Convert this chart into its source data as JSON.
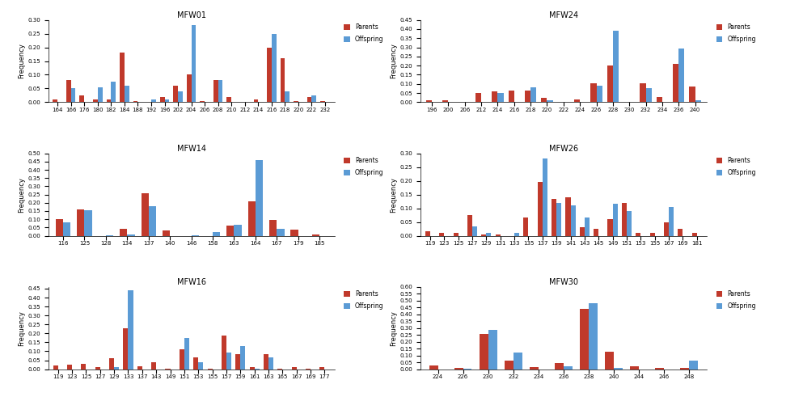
{
  "charts": [
    {
      "title": "MFW01",
      "categories": [
        164,
        166,
        176,
        180,
        182,
        184,
        188,
        192,
        196,
        202,
        204,
        206,
        208,
        210,
        212,
        214,
        216,
        218,
        220,
        222,
        232
      ],
      "parents": [
        0.01,
        0.08,
        0.025,
        0.01,
        0.01,
        0.18,
        0.005,
        0.0,
        0.02,
        0.06,
        0.1,
        0.005,
        0.08,
        0.02,
        0.0,
        0.01,
        0.2,
        0.16,
        0.005,
        0.02,
        0.005
      ],
      "offspring": [
        0.0,
        0.05,
        0.0,
        0.055,
        0.075,
        0.06,
        0.0,
        0.01,
        0.01,
        0.04,
        0.28,
        0.0,
        0.08,
        0.0,
        0.0,
        0.0,
        0.25,
        0.04,
        0.0,
        0.025,
        0.0
      ],
      "ylim": [
        0,
        0.3
      ]
    },
    {
      "title": "MFW24",
      "categories": [
        196,
        200,
        206,
        212,
        214,
        216,
        218,
        220,
        222,
        224,
        226,
        228,
        230,
        232,
        234,
        236,
        240
      ],
      "parents": [
        0.01,
        0.01,
        0.0,
        0.05,
        0.06,
        0.065,
        0.065,
        0.025,
        0.0,
        0.015,
        0.105,
        0.2,
        0.0,
        0.105,
        0.03,
        0.21,
        0.085
      ],
      "offspring": [
        0.0,
        0.0,
        0.0,
        0.0,
        0.05,
        0.0,
        0.08,
        0.01,
        0.0,
        0.0,
        0.09,
        0.39,
        0.0,
        0.075,
        0.0,
        0.295,
        0.01
      ],
      "ylim": [
        0,
        0.45
      ]
    },
    {
      "title": "MFW14",
      "categories": [
        116,
        125,
        128,
        134,
        137,
        140,
        146,
        158,
        163,
        164,
        167,
        179,
        185
      ],
      "parents": [
        0.1,
        0.16,
        0.0,
        0.04,
        0.26,
        0.03,
        0.0,
        0.0,
        0.06,
        0.21,
        0.095,
        0.035,
        0.01
      ],
      "offspring": [
        0.08,
        0.155,
        0.005,
        0.01,
        0.18,
        0.0,
        0.005,
        0.02,
        0.065,
        0.46,
        0.04,
        0.0,
        0.0
      ],
      "ylim": [
        0,
        0.5
      ]
    },
    {
      "title": "MFW26",
      "categories": [
        119,
        123,
        125,
        127,
        129,
        131,
        133,
        135,
        137,
        139,
        141,
        143,
        145,
        149,
        151,
        153,
        155,
        167,
        169,
        181
      ],
      "parents": [
        0.015,
        0.01,
        0.01,
        0.075,
        0.005,
        0.005,
        0.0,
        0.065,
        0.195,
        0.135,
        0.14,
        0.03,
        0.025,
        0.06,
        0.12,
        0.01,
        0.01,
        0.05,
        0.025,
        0.01
      ],
      "offspring": [
        0.0,
        0.0,
        0.0,
        0.035,
        0.01,
        0.0,
        0.01,
        0.0,
        0.28,
        0.12,
        0.11,
        0.065,
        0.0,
        0.115,
        0.09,
        0.0,
        0.0,
        0.105,
        0.0,
        0.0
      ],
      "ylim": [
        0,
        0.3
      ]
    },
    {
      "title": "MFW16",
      "categories": [
        119,
        123,
        125,
        127,
        129,
        133,
        137,
        143,
        149,
        151,
        153,
        155,
        157,
        159,
        161,
        163,
        165,
        167,
        169,
        177
      ],
      "parents": [
        0.02,
        0.025,
        0.03,
        0.01,
        0.06,
        0.23,
        0.015,
        0.04,
        0.005,
        0.11,
        0.065,
        0.005,
        0.19,
        0.085,
        0.01,
        0.085,
        0.005,
        0.01,
        0.005,
        0.01
      ],
      "offspring": [
        0.0,
        0.0,
        0.0,
        0.0,
        0.01,
        0.44,
        0.0,
        0.0,
        0.0,
        0.175,
        0.04,
        0.0,
        0.095,
        0.13,
        0.005,
        0.065,
        0.0,
        0.0,
        0.0,
        0.0
      ],
      "ylim": [
        0,
        0.46
      ]
    },
    {
      "title": "MFW30",
      "categories": [
        224,
        226,
        230,
        232,
        234,
        236,
        238,
        240,
        244,
        246,
        248
      ],
      "parents": [
        0.025,
        0.01,
        0.255,
        0.065,
        0.015,
        0.045,
        0.44,
        0.13,
        0.02,
        0.01,
        0.01
      ],
      "offspring": [
        0.0,
        0.005,
        0.285,
        0.12,
        0.0,
        0.02,
        0.48,
        0.01,
        0.0,
        0.0,
        0.065
      ],
      "ylim": [
        0,
        0.6
      ]
    }
  ],
  "parent_color": "#c0392b",
  "offspring_color": "#5b9bd5",
  "ylabel": "Frequency",
  "bar_width": 0.35,
  "legend_labels": [
    "Parents",
    "Offspring"
  ]
}
